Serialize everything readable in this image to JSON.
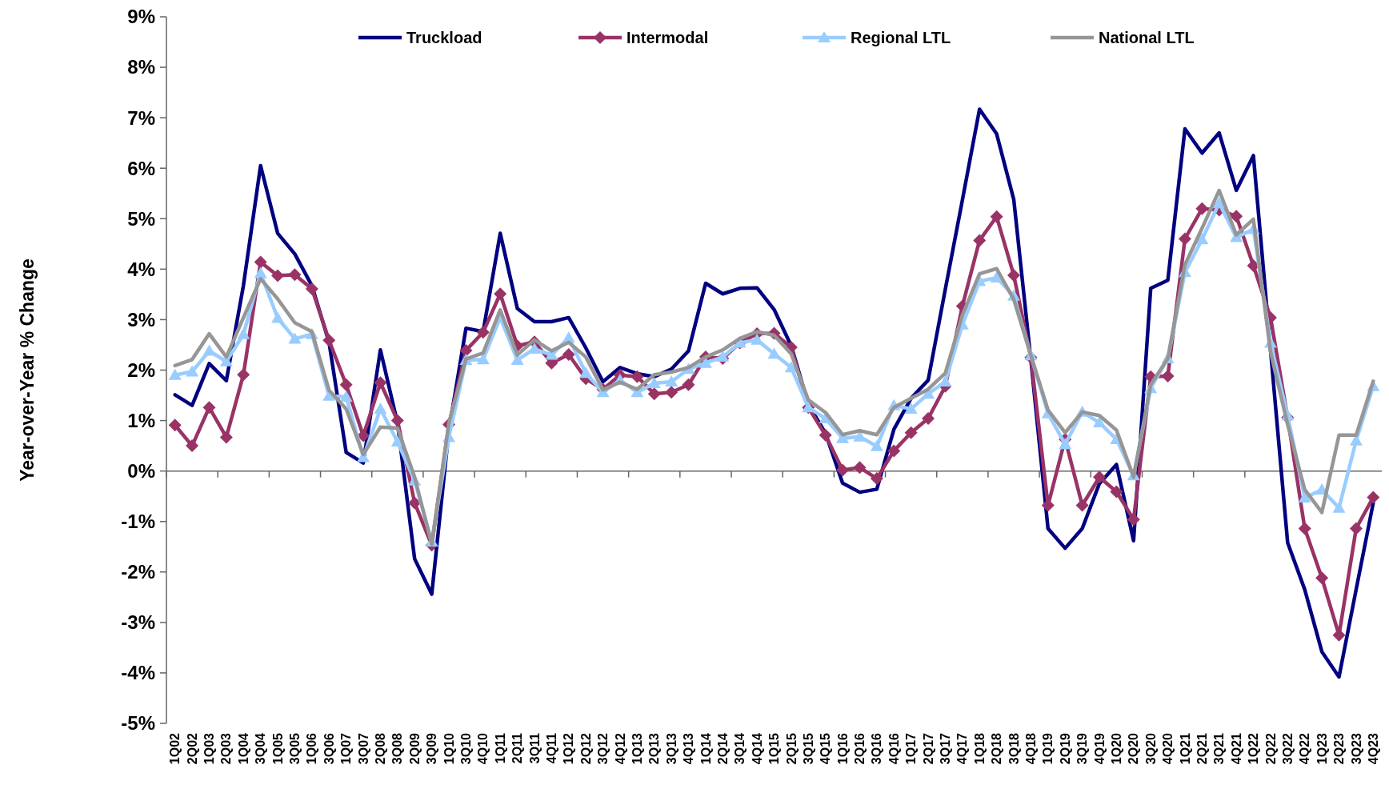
{
  "chart_data": {
    "type": "line",
    "ylabel": "Year-over-Year % Change",
    "categories": [
      "1Q02",
      "2Q02",
      "1Q03",
      "2Q03",
      "1Q04",
      "3Q04",
      "1Q05",
      "3Q05",
      "1Q06",
      "3Q06",
      "1Q07",
      "3Q07",
      "2Q08",
      "3Q08",
      "2Q09",
      "3Q09",
      "1Q10",
      "3Q10",
      "4Q10",
      "1Q11",
      "2Q11",
      "3Q11",
      "4Q11",
      "1Q12",
      "2Q12",
      "3Q12",
      "4Q12",
      "1Q13",
      "2Q13",
      "3Q13",
      "4Q13",
      "1Q14",
      "2Q14",
      "3Q14",
      "4Q14",
      "1Q15",
      "2Q15",
      "3Q15",
      "4Q15",
      "1Q16",
      "2Q16",
      "3Q16",
      "4Q16",
      "1Q17",
      "2Q17",
      "3Q17",
      "4Q17",
      "1Q18",
      "2Q18",
      "3Q18",
      "4Q18",
      "1Q19",
      "2Q19",
      "3Q19",
      "4Q19",
      "1Q20",
      "2Q20",
      "3Q20",
      "4Q20",
      "1Q21",
      "2Q21",
      "3Q21",
      "4Q21",
      "1Q22",
      "2Q22",
      "3Q22",
      "4Q22",
      "1Q23",
      "2Q23",
      "3Q23",
      "4Q23"
    ],
    "series": [
      {
        "name": "Truckload",
        "color": "#000080",
        "marker": "none",
        "values": [
          1.51,
          1.3,
          2.13,
          1.79,
          3.68,
          6.05,
          4.71,
          4.3,
          3.67,
          2.55,
          0.37,
          0.16,
          2.4,
          0.95,
          -1.74,
          -2.44,
          0.8,
          2.83,
          2.76,
          4.71,
          3.22,
          2.96,
          2.96,
          3.04,
          2.44,
          1.77,
          2.05,
          1.93,
          1.87,
          2.02,
          2.38,
          3.72,
          3.51,
          3.62,
          3.63,
          3.2,
          2.48,
          1.32,
          0.75,
          -0.24,
          -0.42,
          -0.36,
          0.83,
          1.44,
          1.8,
          3.6,
          5.37,
          7.17,
          6.68,
          5.38,
          2.2,
          -1.14,
          -1.53,
          -1.14,
          -0.25,
          0.13,
          -1.38,
          3.62,
          3.78,
          6.78,
          6.3,
          6.7,
          5.56,
          6.25,
          2.4,
          -1.42,
          -2.35,
          -3.58,
          -4.08,
          -2.35,
          -0.63
        ]
      },
      {
        "name": "Intermodal",
        "color": "#993366",
        "marker": "diamond",
        "values": [
          0.91,
          0.5,
          1.26,
          0.67,
          1.91,
          4.14,
          3.87,
          3.89,
          3.61,
          2.59,
          1.71,
          0.7,
          1.75,
          1.0,
          -0.63,
          -1.47,
          0.92,
          2.39,
          2.75,
          3.51,
          2.48,
          2.56,
          2.14,
          2.31,
          1.83,
          1.62,
          1.9,
          1.87,
          1.53,
          1.56,
          1.71,
          2.26,
          2.23,
          2.54,
          2.72,
          2.73,
          2.45,
          1.26,
          0.71,
          0.02,
          0.07,
          -0.15,
          0.4,
          0.76,
          1.04,
          1.68,
          3.27,
          4.57,
          5.04,
          3.88,
          2.25,
          -0.68,
          0.63,
          -0.68,
          -0.12,
          -0.41,
          -0.96,
          1.87,
          1.88,
          4.6,
          5.2,
          5.17,
          5.05,
          4.07,
          3.04,
          1.06,
          -1.14,
          -2.12,
          -3.25,
          -1.14,
          -0.52
        ]
      },
      {
        "name": "Regional LTL",
        "color": "#99ccff",
        "marker": "triangle",
        "values": [
          1.9,
          1.97,
          2.38,
          2.17,
          2.71,
          3.92,
          3.03,
          2.62,
          2.71,
          1.49,
          1.47,
          0.27,
          1.23,
          0.58,
          -0.19,
          -1.4,
          0.67,
          2.2,
          2.21,
          3.04,
          2.2,
          2.42,
          2.3,
          2.64,
          1.94,
          1.56,
          1.8,
          1.56,
          1.74,
          1.77,
          2.02,
          2.14,
          2.26,
          2.54,
          2.6,
          2.32,
          2.05,
          1.26,
          1.04,
          0.65,
          0.68,
          0.49,
          1.3,
          1.23,
          1.53,
          1.77,
          2.9,
          3.76,
          3.83,
          3.47,
          2.29,
          1.14,
          0.53,
          1.17,
          0.96,
          0.63,
          -0.09,
          1.64,
          2.23,
          3.94,
          4.59,
          5.31,
          4.63,
          4.79,
          2.54,
          1.1,
          -0.53,
          -0.37,
          -0.73,
          0.6,
          1.68
        ]
      },
      {
        "name": "National LTL",
        "color": "#969696",
        "marker": "none",
        "values": [
          2.09,
          2.21,
          2.72,
          2.26,
          3.04,
          3.81,
          3.41,
          2.94,
          2.76,
          1.6,
          1.23,
          0.33,
          0.87,
          0.85,
          -0.12,
          -1.45,
          0.95,
          2.22,
          2.34,
          3.19,
          2.3,
          2.6,
          2.38,
          2.55,
          2.26,
          1.61,
          1.76,
          1.62,
          1.91,
          1.96,
          2.05,
          2.26,
          2.4,
          2.63,
          2.76,
          2.69,
          2.32,
          1.41,
          1.16,
          0.72,
          0.8,
          0.72,
          1.26,
          1.44,
          1.62,
          1.94,
          3.09,
          3.91,
          4.01,
          3.4,
          2.29,
          1.21,
          0.76,
          1.17,
          1.1,
          0.81,
          -0.12,
          1.71,
          2.23,
          4.09,
          4.81,
          5.56,
          4.68,
          4.99,
          2.36,
          0.92,
          -0.37,
          -0.82,
          0.71,
          0.71,
          1.78
        ]
      }
    ],
    "ylim": [
      -5,
      9
    ],
    "yticks": [
      {
        "value": -5,
        "label": "-5%"
      },
      {
        "value": -4,
        "label": "-4%"
      },
      {
        "value": -3,
        "label": "-3%"
      },
      {
        "value": -2,
        "label": "-2%"
      },
      {
        "value": -1,
        "label": "-1%"
      },
      {
        "value": 0,
        "label": "0%"
      },
      {
        "value": 1,
        "label": "1%"
      },
      {
        "value": 2,
        "label": "2%"
      },
      {
        "value": 3,
        "label": "3%"
      },
      {
        "value": 4,
        "label": "4%"
      },
      {
        "value": 5,
        "label": "5%"
      },
      {
        "value": 6,
        "label": "6%"
      },
      {
        "value": 7,
        "label": "7%"
      },
      {
        "value": 8,
        "label": "8%"
      },
      {
        "value": 9,
        "label": "9%"
      }
    ],
    "legend": "top",
    "line_style": "solid"
  }
}
